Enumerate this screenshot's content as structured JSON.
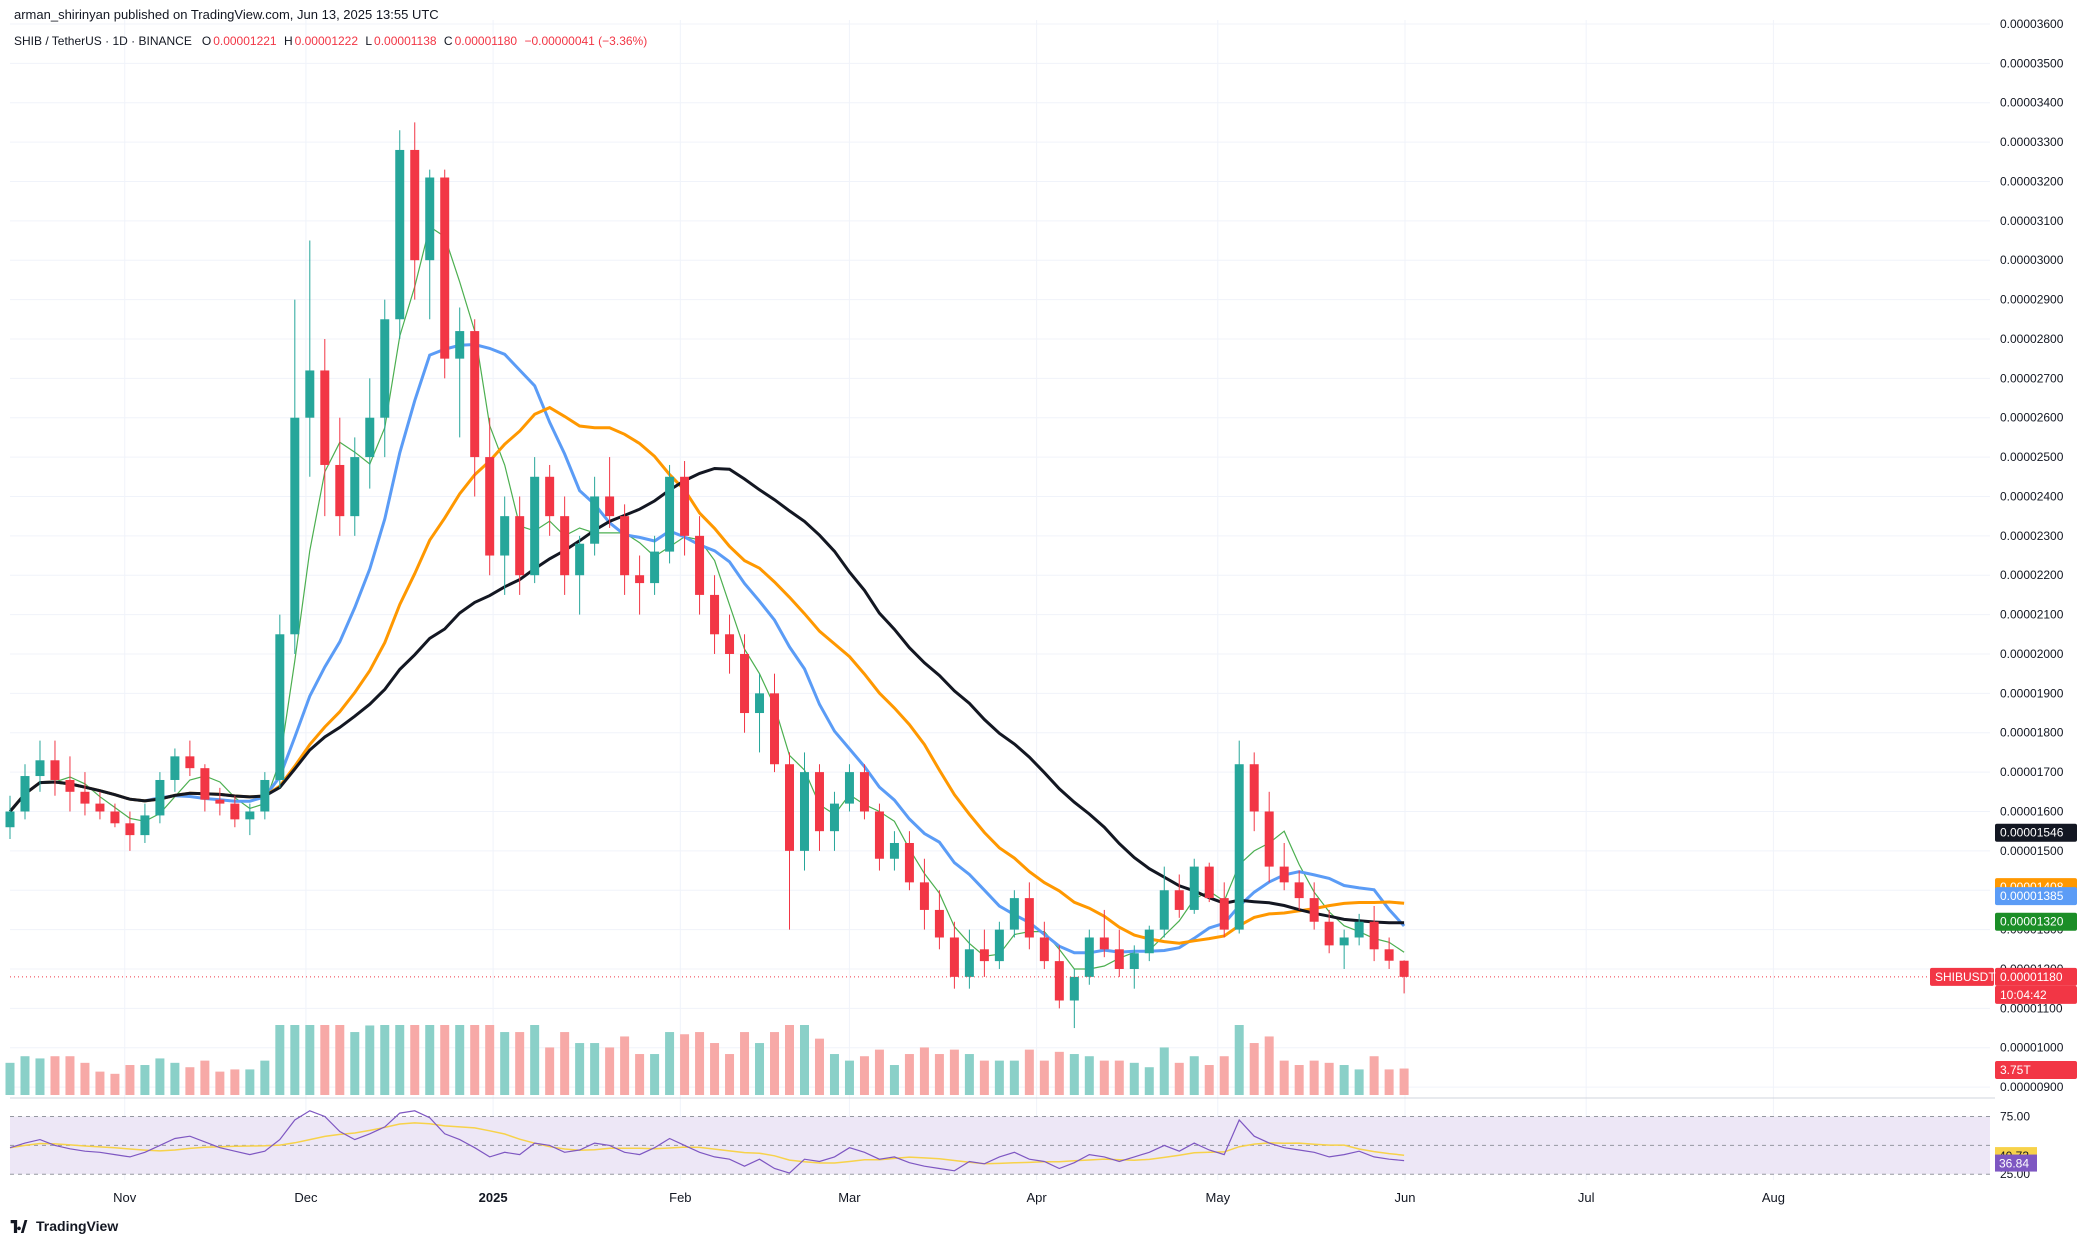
{
  "header": {
    "publisher": "arman_shirinyan published on TradingView.com, Jun 13, 2025 13:55 UTC"
  },
  "symbol_bar": {
    "title": "SHIB / TetherUS · 1D · BINANCE",
    "open_label": "O",
    "open": "0.00001221",
    "high_label": "H",
    "high": "0.00001222",
    "low_label": "L",
    "low": "0.00001138",
    "close_label": "C",
    "close": "0.00001180",
    "change": "−0.00000041 (−3.36%)"
  },
  "brand": {
    "name": "TradingView"
  },
  "colors": {
    "up": "#26a69a",
    "down": "#f23645",
    "ma_black": "#131722",
    "ma_orange": "#ff9800",
    "ma_blue": "#5b9cf6",
    "ma_green": "#4caf50",
    "rsi_line": "#7e57c2",
    "rsi_ma": "#f7d24a",
    "rsi_band": "#ede7f6"
  },
  "chart_data": {
    "type": "candlestick",
    "price_axis": {
      "ticks": [
        "0.00003600",
        "0.00003500",
        "0.00003400",
        "0.00003300",
        "0.00003200",
        "0.00003100",
        "0.00003000",
        "0.00002900",
        "0.00002800",
        "0.00002700",
        "0.00002600",
        "0.00002500",
        "0.00002400",
        "0.00002300",
        "0.00002200",
        "0.00002100",
        "0.00002000",
        "0.00001900",
        "0.00001800",
        "0.00001700",
        "0.00001600",
        "0.00001500",
        "0.00001400",
        "0.00001300",
        "0.00001200",
        "0.00001100",
        "0.00001000",
        "0.00000900"
      ],
      "range": [
        8.8e-06,
        3.61e-05
      ]
    },
    "time_axis": {
      "ticks": [
        "Nov",
        "Dec",
        "2025",
        "Feb",
        "Mar",
        "Apr",
        "May",
        "Jun",
        "Jul",
        "Aug"
      ],
      "tick_days": [
        19,
        49,
        80,
        111,
        139,
        170,
        200,
        231,
        261,
        292
      ]
    },
    "candles_ohlc_e8": [
      [
        1560,
        1640,
        1530,
        1600
      ],
      [
        1600,
        1720,
        1580,
        1690
      ],
      [
        1690,
        1780,
        1650,
        1730
      ],
      [
        1730,
        1780,
        1640,
        1680
      ],
      [
        1680,
        1740,
        1600,
        1650
      ],
      [
        1650,
        1700,
        1590,
        1620
      ],
      [
        1620,
        1650,
        1580,
        1600
      ],
      [
        1600,
        1620,
        1560,
        1570
      ],
      [
        1570,
        1600,
        1500,
        1540
      ],
      [
        1540,
        1620,
        1520,
        1590
      ],
      [
        1590,
        1700,
        1570,
        1680
      ],
      [
        1680,
        1760,
        1650,
        1740
      ],
      [
        1740,
        1780,
        1690,
        1710
      ],
      [
        1710,
        1720,
        1600,
        1630
      ],
      [
        1630,
        1660,
        1590,
        1620
      ],
      [
        1620,
        1640,
        1560,
        1580
      ],
      [
        1580,
        1620,
        1540,
        1600
      ],
      [
        1600,
        1700,
        1580,
        1680
      ],
      [
        1680,
        2100,
        1660,
        2050
      ],
      [
        2050,
        2900,
        2000,
        2600
      ],
      [
        2600,
        3050,
        2450,
        2720
      ],
      [
        2720,
        2800,
        2350,
        2480
      ],
      [
        2480,
        2600,
        2300,
        2350
      ],
      [
        2350,
        2550,
        2300,
        2500
      ],
      [
        2500,
        2700,
        2420,
        2600
      ],
      [
        2600,
        2900,
        2500,
        2850
      ],
      [
        2850,
        3330,
        2800,
        3280
      ],
      [
        3280,
        3350,
        2900,
        3000
      ],
      [
        3000,
        3230,
        2850,
        3210
      ],
      [
        3210,
        3230,
        2700,
        2750
      ],
      [
        2750,
        2880,
        2550,
        2820
      ],
      [
        2820,
        2850,
        2400,
        2500
      ],
      [
        2500,
        2600,
        2200,
        2250
      ],
      [
        2250,
        2400,
        2150,
        2350
      ],
      [
        2350,
        2400,
        2150,
        2200
      ],
      [
        2200,
        2500,
        2180,
        2450
      ],
      [
        2450,
        2480,
        2300,
        2350
      ],
      [
        2350,
        2400,
        2150,
        2200
      ],
      [
        2200,
        2300,
        2100,
        2280
      ],
      [
        2280,
        2450,
        2250,
        2400
      ],
      [
        2400,
        2500,
        2320,
        2350
      ],
      [
        2350,
        2380,
        2150,
        2200
      ],
      [
        2200,
        2250,
        2100,
        2180
      ],
      [
        2180,
        2300,
        2150,
        2260
      ],
      [
        2260,
        2480,
        2230,
        2450
      ],
      [
        2450,
        2490,
        2250,
        2300
      ],
      [
        2300,
        2350,
        2100,
        2150
      ],
      [
        2150,
        2200,
        2000,
        2050
      ],
      [
        2050,
        2100,
        1950,
        2000
      ],
      [
        2000,
        2050,
        1800,
        1850
      ],
      [
        1850,
        1950,
        1750,
        1900
      ],
      [
        1900,
        1950,
        1700,
        1720
      ],
      [
        1720,
        1750,
        1300,
        1500
      ],
      [
        1500,
        1750,
        1450,
        1700
      ],
      [
        1700,
        1720,
        1500,
        1550
      ],
      [
        1550,
        1650,
        1500,
        1620
      ],
      [
        1620,
        1720,
        1600,
        1700
      ],
      [
        1700,
        1720,
        1580,
        1600
      ],
      [
        1600,
        1620,
        1450,
        1480
      ],
      [
        1480,
        1550,
        1450,
        1520
      ],
      [
        1520,
        1550,
        1400,
        1420
      ],
      [
        1420,
        1480,
        1300,
        1350
      ],
      [
        1350,
        1400,
        1250,
        1280
      ],
      [
        1280,
        1320,
        1150,
        1180
      ],
      [
        1180,
        1300,
        1150,
        1250
      ],
      [
        1250,
        1300,
        1180,
        1220
      ],
      [
        1220,
        1320,
        1200,
        1300
      ],
      [
        1300,
        1400,
        1280,
        1380
      ],
      [
        1380,
        1420,
        1250,
        1280
      ],
      [
        1280,
        1320,
        1200,
        1220
      ],
      [
        1220,
        1260,
        1100,
        1120
      ],
      [
        1120,
        1200,
        1050,
        1180
      ],
      [
        1180,
        1300,
        1160,
        1280
      ],
      [
        1280,
        1350,
        1230,
        1250
      ],
      [
        1250,
        1300,
        1180,
        1200
      ],
      [
        1200,
        1260,
        1150,
        1240
      ],
      [
        1240,
        1310,
        1220,
        1300
      ],
      [
        1300,
        1460,
        1280,
        1400
      ],
      [
        1400,
        1440,
        1330,
        1350
      ],
      [
        1350,
        1480,
        1340,
        1460
      ],
      [
        1460,
        1470,
        1370,
        1380
      ],
      [
        1380,
        1420,
        1280,
        1300
      ],
      [
        1300,
        1780,
        1290,
        1720
      ],
      [
        1720,
        1750,
        1550,
        1600
      ],
      [
        1600,
        1650,
        1420,
        1460
      ],
      [
        1460,
        1520,
        1400,
        1420
      ],
      [
        1420,
        1450,
        1350,
        1380
      ],
      [
        1380,
        1420,
        1300,
        1320
      ],
      [
        1320,
        1350,
        1240,
        1260
      ],
      [
        1260,
        1300,
        1200,
        1280
      ],
      [
        1280,
        1340,
        1260,
        1320
      ],
      [
        1320,
        1360,
        1220,
        1250
      ],
      [
        1250,
        1280,
        1200,
        1221
      ],
      [
        1221,
        1222,
        1138,
        1180
      ]
    ],
    "volume_last": "3.75T",
    "moving_averages": [
      {
        "color": "black",
        "last_value": "0.00001546"
      },
      {
        "color": "orange",
        "last_value": "0.00001408"
      },
      {
        "color": "blue",
        "last_value": "0.00001385"
      },
      {
        "color": "green",
        "last_value": "0.00001320"
      }
    ],
    "last_price_label": {
      "symbol": "SHIBUSDT",
      "price": "0.00001180",
      "countdown": "10:04:42"
    },
    "rsi": {
      "levels": [
        "75.00",
        "25.00"
      ],
      "range": [
        20,
        85
      ],
      "values": [
        48,
        52,
        55,
        50,
        47,
        45,
        44,
        42,
        40,
        44,
        50,
        56,
        58,
        53,
        48,
        45,
        42,
        45,
        55,
        72,
        80,
        75,
        62,
        55,
        60,
        66,
        78,
        80,
        74,
        60,
        55,
        48,
        40,
        44,
        42,
        52,
        50,
        44,
        46,
        52,
        50,
        44,
        42,
        48,
        56,
        50,
        44,
        40,
        38,
        32,
        38,
        30,
        26,
        38,
        36,
        40,
        48,
        44,
        38,
        40,
        35,
        32,
        30,
        28,
        36,
        34,
        40,
        44,
        38,
        36,
        30,
        35,
        42,
        40,
        36,
        40,
        44,
        50,
        45,
        52,
        46,
        42,
        72,
        58,
        52,
        48,
        46,
        44,
        40,
        42,
        45,
        40,
        38,
        36.84
      ],
      "value_label": "36.84",
      "ma_label": "40.73"
    }
  }
}
